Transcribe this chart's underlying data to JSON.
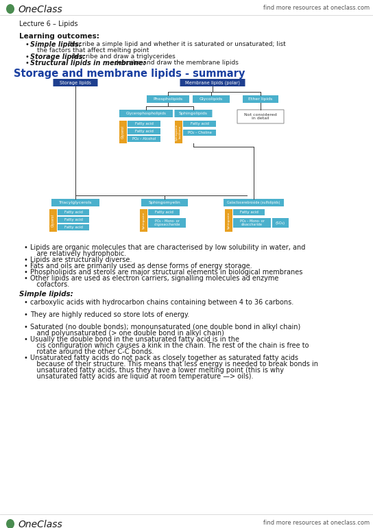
{
  "bg_color": "#ffffff",
  "text_color": "#1a1a1a",
  "oneclass_green": "#4a8c50",
  "diagram_title_color": "#1a3fa0",
  "blue_box_color": "#1e3f8f",
  "cyan_box_color": "#4ab0cc",
  "orange_box_color": "#e8a020",
  "lecture_label": "Lecture 6 – Lipids",
  "section1_title": "Learning outcomes:",
  "diagram_title": "Storage and membrane lipids - summary",
  "section2_title": "Simple lipids:",
  "header_right": "find more resources at oneclass.com",
  "footer_right": "find more resources at oneclass.com",
  "oneclass_text": "OneClass"
}
